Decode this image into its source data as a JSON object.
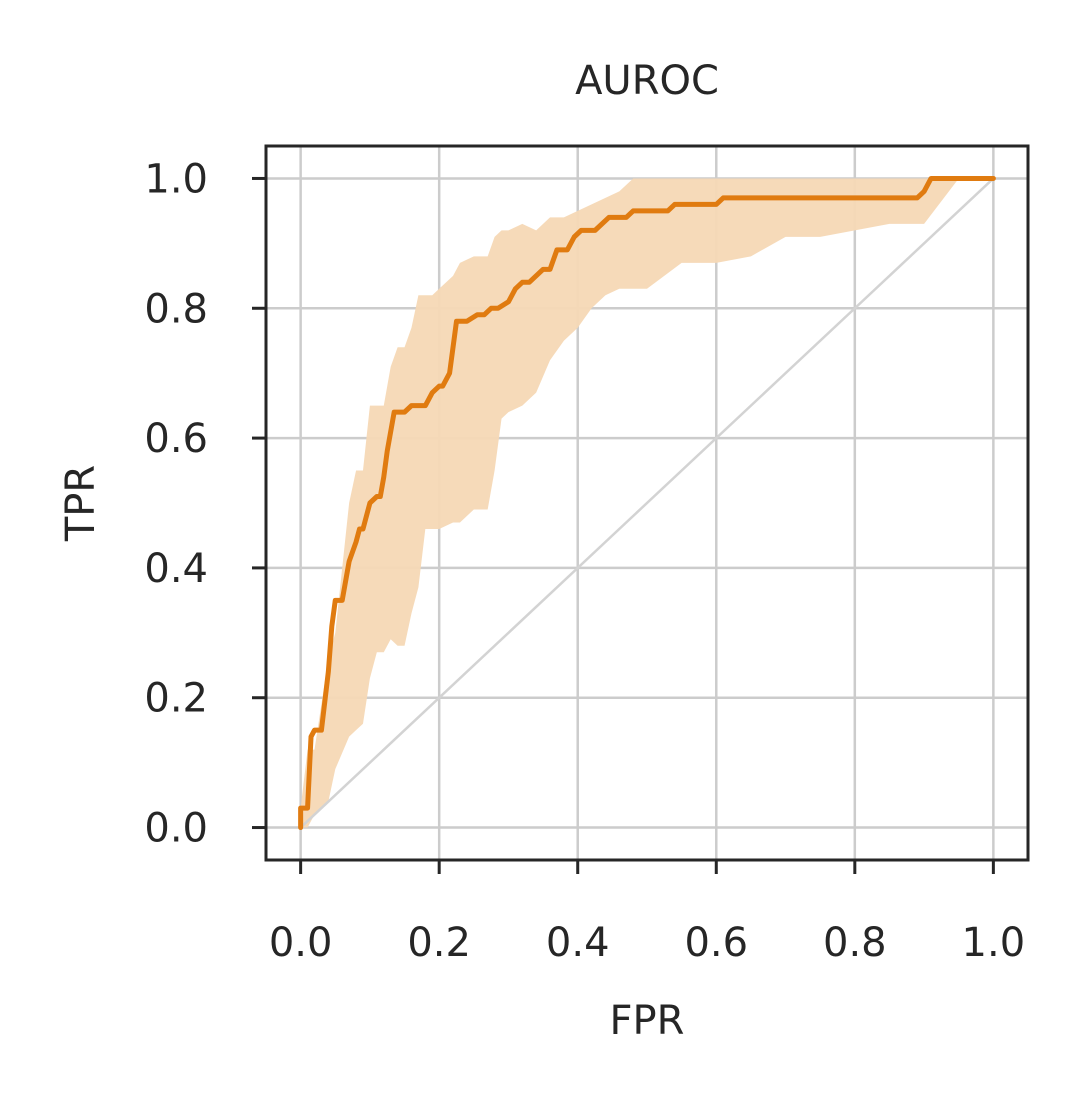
{
  "chart_data": {
    "type": "line",
    "title": "AUROC",
    "xlabel": "FPR",
    "ylabel": "TPR",
    "xlim": [
      -0.05,
      1.05
    ],
    "ylim": [
      -0.05,
      1.05
    ],
    "xticks": [
      "0.0",
      "0.2",
      "0.4",
      "0.6",
      "0.8",
      "1.0"
    ],
    "yticks": [
      "0.0",
      "0.2",
      "0.4",
      "0.6",
      "0.8",
      "1.0"
    ],
    "grid": true,
    "colors": {
      "line": "#e07b10",
      "band": "#f5d8b5",
      "diagonal": "#d3d3d3",
      "grid": "#cccccc",
      "axes": "#262626"
    },
    "series": [
      {
        "x": [
          0.0,
          0.0,
          0.01,
          0.015,
          0.02,
          0.03,
          0.04,
          0.045,
          0.05,
          0.06,
          0.07,
          0.08,
          0.085,
          0.09,
          0.1,
          0.11,
          0.115,
          0.12,
          0.125,
          0.135,
          0.14,
          0.15,
          0.16,
          0.17,
          0.18,
          0.19,
          0.2,
          0.205,
          0.215,
          0.225,
          0.24,
          0.255,
          0.265,
          0.275,
          0.285,
          0.3,
          0.31,
          0.32,
          0.33,
          0.34,
          0.35,
          0.36,
          0.37,
          0.375,
          0.385,
          0.395,
          0.405,
          0.41,
          0.415,
          0.425,
          0.445,
          0.46,
          0.47,
          0.48,
          0.5,
          0.53,
          0.54,
          0.56,
          0.6,
          0.61,
          0.62,
          0.67,
          0.68,
          0.72,
          0.73,
          0.74,
          0.76,
          0.8,
          0.89,
          0.9,
          0.91,
          0.92,
          1.0
        ],
        "y": [
          0.0,
          0.03,
          0.03,
          0.14,
          0.15,
          0.15,
          0.24,
          0.31,
          0.35,
          0.35,
          0.41,
          0.44,
          0.46,
          0.46,
          0.5,
          0.51,
          0.51,
          0.54,
          0.58,
          0.64,
          0.64,
          0.64,
          0.65,
          0.65,
          0.65,
          0.67,
          0.68,
          0.68,
          0.7,
          0.78,
          0.78,
          0.79,
          0.79,
          0.8,
          0.8,
          0.81,
          0.83,
          0.84,
          0.84,
          0.85,
          0.86,
          0.86,
          0.89,
          0.89,
          0.89,
          0.91,
          0.92,
          0.92,
          0.92,
          0.92,
          0.94,
          0.94,
          0.94,
          0.95,
          0.95,
          0.95,
          0.96,
          0.96,
          0.96,
          0.97,
          0.97,
          0.97,
          0.97,
          0.97,
          0.97,
          0.97,
          0.97,
          0.97,
          0.97,
          0.98,
          1.0,
          1.0,
          1.0
        ]
      }
    ],
    "band": {
      "x": [
        0.0,
        0.01,
        0.02,
        0.04,
        0.05,
        0.07,
        0.08,
        0.09,
        0.1,
        0.11,
        0.12,
        0.13,
        0.14,
        0.15,
        0.16,
        0.17,
        0.18,
        0.19,
        0.2,
        0.22,
        0.23,
        0.25,
        0.27,
        0.28,
        0.29,
        0.3,
        0.32,
        0.34,
        0.36,
        0.38,
        0.4,
        0.42,
        0.44,
        0.46,
        0.48,
        0.5,
        0.55,
        0.6,
        0.65,
        0.7,
        0.75,
        0.8,
        0.85,
        0.9,
        0.95,
        1.0
      ],
      "upper": [
        0.03,
        0.12,
        0.12,
        0.26,
        0.3,
        0.5,
        0.55,
        0.55,
        0.65,
        0.65,
        0.65,
        0.71,
        0.74,
        0.74,
        0.77,
        0.82,
        0.82,
        0.82,
        0.83,
        0.85,
        0.87,
        0.88,
        0.88,
        0.91,
        0.92,
        0.92,
        0.93,
        0.92,
        0.94,
        0.94,
        0.95,
        0.96,
        0.97,
        0.98,
        1.0,
        1.0,
        1.0,
        1.0,
        1.0,
        1.0,
        1.0,
        1.0,
        1.0,
        1.0,
        1.0,
        1.0
      ],
      "lower": [
        0.0,
        0.0,
        0.02,
        0.04,
        0.09,
        0.14,
        0.15,
        0.16,
        0.23,
        0.27,
        0.27,
        0.29,
        0.28,
        0.28,
        0.33,
        0.37,
        0.46,
        0.46,
        0.46,
        0.47,
        0.47,
        0.49,
        0.49,
        0.55,
        0.63,
        0.64,
        0.65,
        0.67,
        0.72,
        0.75,
        0.77,
        0.8,
        0.82,
        0.83,
        0.83,
        0.83,
        0.87,
        0.87,
        0.88,
        0.91,
        0.91,
        0.92,
        0.93,
        0.93,
        1.0,
        1.0
      ]
    },
    "diagonal": {
      "x": [
        0,
        1
      ],
      "y": [
        0,
        1
      ]
    }
  }
}
